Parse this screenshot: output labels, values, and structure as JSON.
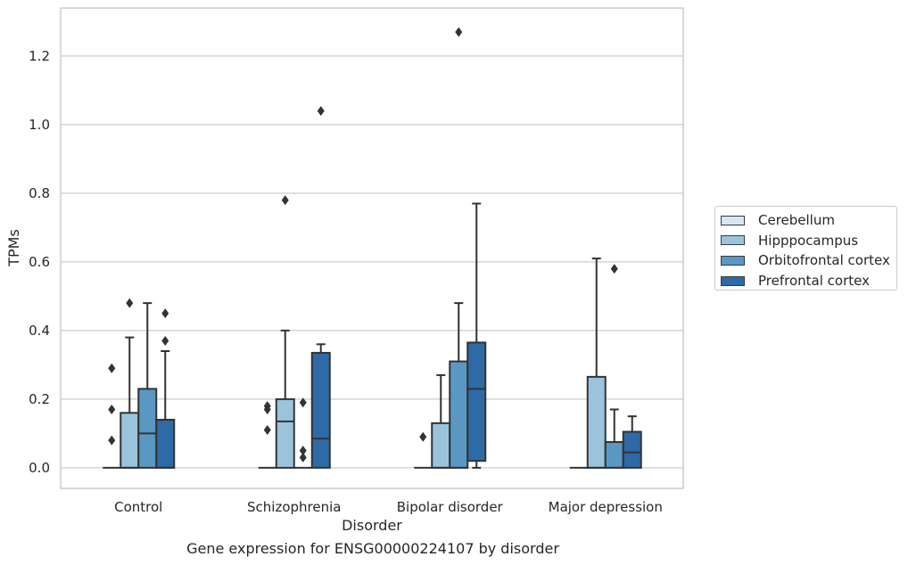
{
  "chart_data": {
    "type": "boxplot",
    "xlabel": "Disorder",
    "ylabel": "TPMs",
    "caption": "Gene expression for ENSG00000224107 by disorder",
    "ylim": [
      -0.06,
      1.34
    ],
    "yticks": [
      "0.0",
      "0.2",
      "0.4",
      "0.6",
      "0.8",
      "1.0",
      "1.2"
    ],
    "ytick_values": [
      0.0,
      0.2,
      0.4,
      0.6,
      0.8,
      1.0,
      1.2
    ],
    "grid": "horizontal",
    "legend_placement": "right",
    "categories": [
      "Control",
      "Schizophrenia",
      "Bipolar disorder",
      "Major depression"
    ],
    "series": [
      {
        "name": "Cerebellum",
        "color": "#d6e6f3",
        "boxes": [
          {
            "min": 0.0,
            "q1": 0.0,
            "median": 0.0,
            "q3": 0.0,
            "max": 0.0,
            "outliers": [
              0.29,
              0.17,
              0.08
            ]
          },
          {
            "min": 0.0,
            "q1": 0.0,
            "median": 0.0,
            "q3": 0.0,
            "max": 0.0,
            "outliers": [
              0.18,
              0.17,
              0.11
            ]
          },
          {
            "min": 0.0,
            "q1": 0.0,
            "median": 0.0,
            "q3": 0.0,
            "max": 0.0,
            "outliers": [
              0.09
            ]
          },
          {
            "min": 0.0,
            "q1": 0.0,
            "median": 0.0,
            "q3": 0.0,
            "max": 0.0,
            "outliers": []
          }
        ]
      },
      {
        "name": "Hipppocampus",
        "color": "#9bc4dc",
        "boxes": [
          {
            "min": 0.0,
            "q1": 0.0,
            "median": 0.0,
            "q3": 0.16,
            "max": 0.38,
            "outliers": [
              0.48
            ]
          },
          {
            "min": 0.0,
            "q1": 0.0,
            "median": 0.135,
            "q3": 0.2,
            "max": 0.4,
            "outliers": [
              0.78
            ]
          },
          {
            "min": 0.0,
            "q1": 0.0,
            "median": 0.0,
            "q3": 0.13,
            "max": 0.27,
            "outliers": []
          },
          {
            "min": 0.0,
            "q1": 0.0,
            "median": 0.0,
            "q3": 0.265,
            "max": 0.61,
            "outliers": []
          }
        ]
      },
      {
        "name": "Orbitofrontal cortex",
        "color": "#5b97c3",
        "boxes": [
          {
            "min": 0.0,
            "q1": 0.0,
            "median": 0.1,
            "q3": 0.23,
            "max": 0.48,
            "outliers": []
          },
          {
            "min": 0.0,
            "q1": 0.0,
            "median": 0.0,
            "q3": 0.0,
            "max": 0.0,
            "outliers": [
              0.19,
              0.05,
              0.03
            ]
          },
          {
            "min": 0.0,
            "q1": 0.0,
            "median": 0.0,
            "q3": 0.31,
            "max": 0.48,
            "outliers": [
              1.27
            ]
          },
          {
            "min": 0.0,
            "q1": 0.0,
            "median": 0.0,
            "q3": 0.075,
            "max": 0.17,
            "outliers": [
              0.58
            ]
          }
        ]
      },
      {
        "name": "Prefrontal cortex",
        "color": "#2d6aa6",
        "boxes": [
          {
            "min": 0.0,
            "q1": 0.0,
            "median": 0.0,
            "q3": 0.14,
            "max": 0.34,
            "outliers": [
              0.45,
              0.37
            ]
          },
          {
            "min": 0.0,
            "q1": 0.0,
            "median": 0.085,
            "q3": 0.335,
            "max": 0.36,
            "outliers": [
              1.04
            ]
          },
          {
            "min": 0.0,
            "q1": 0.02,
            "median": 0.23,
            "q3": 0.365,
            "max": 0.77,
            "outliers": []
          },
          {
            "min": 0.0,
            "q1": 0.0,
            "median": 0.045,
            "q3": 0.105,
            "max": 0.15,
            "outliers": []
          }
        ]
      }
    ]
  }
}
